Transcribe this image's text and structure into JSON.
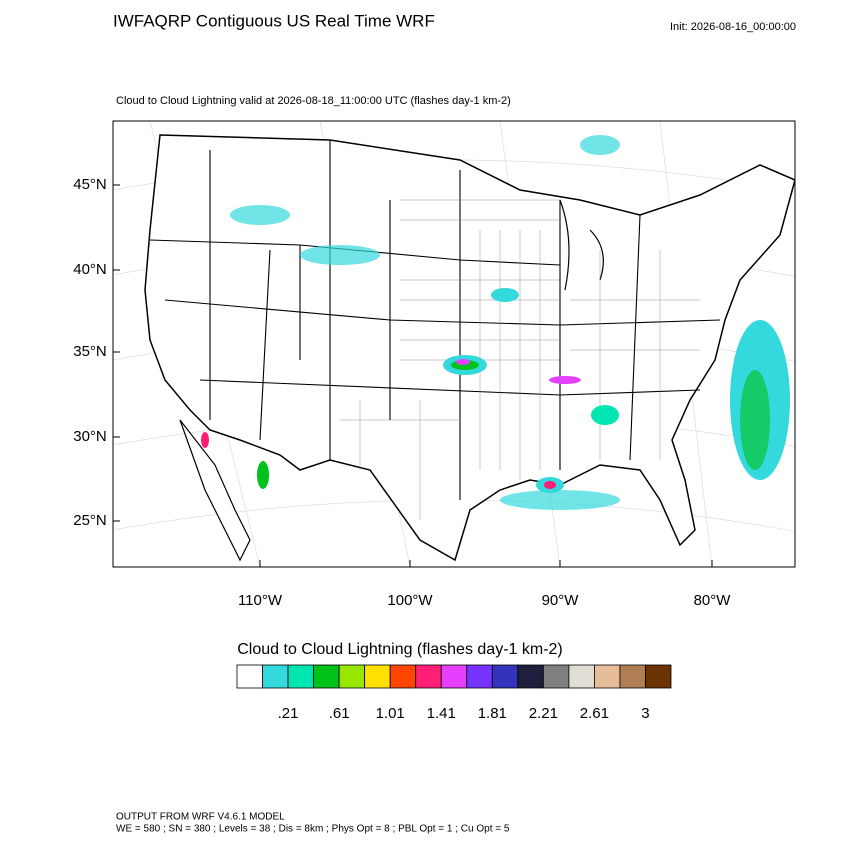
{
  "header": {
    "title": "IWFAQRP Contiguous US Real Time WRF",
    "init": "Init: 2026-08-16_00:00:00"
  },
  "map": {
    "subtitle": "Cloud to Cloud Lightning valid at 2026-08-18_11:00:00 UTC   (flashes day-1 km-2)",
    "lat_labels": [
      "45°N",
      "40°N",
      "35°N",
      "30°N",
      "25°N"
    ],
    "lon_labels": [
      "110°W",
      "100°W",
      "90°W",
      "80°W"
    ]
  },
  "colorbar": {
    "title": "Cloud to Cloud Lightning  (flashes day-1 km-2)",
    "colors": [
      "#ffffff",
      "#33d9dc",
      "#00e6b3",
      "#00c21a",
      "#99e600",
      "#ffe000",
      "#ff4500",
      "#ff1f77",
      "#e640ff",
      "#7733ff",
      "#3333bb",
      "#1f1f3d",
      "#808080",
      "#e0ddd5",
      "#e6bd99",
      "#b07d55",
      "#6b3300"
    ],
    "labels": [
      ".21",
      ".61",
      "1.01",
      "1.41",
      "1.81",
      "2.21",
      "2.61",
      "3"
    ]
  },
  "footer": {
    "line1": "OUTPUT FROM WRF V4.6.1 MODEL",
    "line2": "WE = 580 ; SN = 380 ; Levels = 38 ; Dis = 8km ; Phys Opt = 8 ; PBL Opt = 1 ; Cu Opt = 5"
  }
}
